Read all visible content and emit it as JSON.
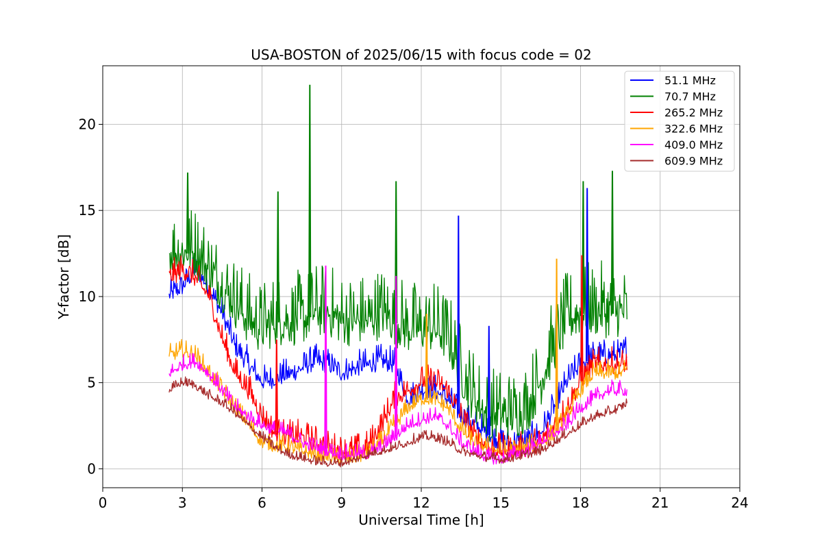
{
  "chart_data": {
    "type": "line",
    "title": "USA-BOSTON of 2025/06/15 with focus code = 02",
    "xlabel": "Universal Time [h]",
    "ylabel": "Y-factor [dB]",
    "xlim": [
      0,
      24
    ],
    "ylim": [
      -1.1,
      23.4
    ],
    "xticks": [
      0,
      3,
      6,
      9,
      12,
      15,
      18,
      21,
      24
    ],
    "yticks": [
      0,
      5,
      10,
      15,
      20
    ],
    "grid": true,
    "legend_position": "top-right",
    "x": [
      2.5,
      3.0,
      3.5,
      4.0,
      4.5,
      5.0,
      5.5,
      6.0,
      6.5,
      7.0,
      7.5,
      8.0,
      8.5,
      9.0,
      9.5,
      10.0,
      10.5,
      11.0,
      11.5,
      12.0,
      12.5,
      13.0,
      13.5,
      14.0,
      14.5,
      15.0,
      15.5,
      16.0,
      16.5,
      17.0,
      17.5,
      18.0,
      18.5,
      19.0,
      19.5,
      19.75
    ],
    "series": [
      {
        "name": " 51.1 MHz",
        "color": "#0000ff",
        "noise": 0.5,
        "values": [
          10.0,
          10.5,
          11.5,
          10.5,
          9.0,
          7.0,
          6.0,
          5.0,
          5.2,
          5.4,
          5.8,
          6.2,
          6.0,
          5.5,
          5.8,
          6.0,
          6.2,
          6.0,
          4.0,
          4.5,
          4.5,
          4.0,
          3.0,
          2.5,
          2.0,
          1.5,
          1.5,
          1.5,
          2.0,
          3.5,
          5.0,
          6.0,
          6.5,
          6.5,
          6.5,
          7.0
        ]
      },
      {
        "name": " 70.7 MHz",
        "color": "#008000",
        "noise": 1.4,
        "values": [
          12.5,
          12.5,
          12.5,
          11.5,
          10.5,
          9.5,
          8.5,
          8.0,
          8.5,
          8.5,
          8.5,
          9.0,
          9.0,
          8.5,
          8.5,
          8.5,
          9.0,
          8.5,
          8.0,
          8.0,
          8.0,
          7.5,
          5.5,
          4.0,
          3.0,
          3.0,
          3.0,
          3.5,
          5.0,
          7.0,
          8.5,
          9.0,
          9.0,
          9.0,
          9.0,
          9.0
        ]
      },
      {
        "name": "265.2 MHz",
        "color": "#ff0000",
        "noise": 0.5,
        "values": [
          11.0,
          11.5,
          11.0,
          10.0,
          7.5,
          5.5,
          4.5,
          3.0,
          2.0,
          1.8,
          1.8,
          1.5,
          1.2,
          1.0,
          1.0,
          1.2,
          2.5,
          4.0,
          4.5,
          5.0,
          5.0,
          4.5,
          3.0,
          1.8,
          1.2,
          1.0,
          1.0,
          1.2,
          1.5,
          2.5,
          3.5,
          5.0,
          6.0,
          6.0,
          6.0,
          6.0
        ]
      },
      {
        "name": "322.6 MHz",
        "color": "#ffa500",
        "noise": 0.35,
        "values": [
          6.5,
          6.8,
          6.5,
          5.5,
          4.5,
          3.5,
          2.5,
          1.5,
          1.3,
          1.2,
          1.0,
          0.8,
          0.6,
          0.5,
          0.6,
          0.8,
          1.5,
          2.5,
          3.5,
          4.0,
          4.0,
          3.5,
          2.2,
          1.5,
          1.2,
          1.0,
          1.0,
          1.2,
          1.5,
          2.0,
          3.0,
          4.5,
          5.5,
          5.5,
          5.5,
          5.8
        ]
      },
      {
        "name": "409.0 MHz",
        "color": "#ff00ff",
        "noise": 0.3,
        "values": [
          5.5,
          6.0,
          6.2,
          5.5,
          4.5,
          3.5,
          3.0,
          2.5,
          2.2,
          2.0,
          1.5,
          1.2,
          1.0,
          0.8,
          0.8,
          0.8,
          1.2,
          1.8,
          2.5,
          2.8,
          3.0,
          2.5,
          1.5,
          1.0,
          0.6,
          0.5,
          0.8,
          1.0,
          1.5,
          2.0,
          2.5,
          3.5,
          4.0,
          4.5,
          4.5,
          4.5
        ]
      },
      {
        "name": "609.9 MHz",
        "color": "#a52a2a",
        "noise": 0.2,
        "values": [
          4.5,
          5.0,
          4.8,
          4.2,
          3.8,
          3.2,
          2.5,
          1.8,
          1.2,
          0.8,
          0.6,
          0.4,
          0.3,
          0.3,
          0.5,
          0.8,
          1.0,
          1.2,
          1.5,
          1.8,
          1.8,
          1.5,
          1.0,
          0.8,
          0.6,
          0.5,
          0.6,
          0.8,
          1.0,
          1.5,
          2.0,
          2.5,
          3.0,
          3.2,
          3.5,
          3.8
        ]
      }
    ],
    "spikes": [
      {
        "series": 1,
        "x": 7.8,
        "y": 22.3
      },
      {
        "series": 1,
        "x": 3.2,
        "y": 17.2
      },
      {
        "series": 1,
        "x": 19.2,
        "y": 17.3
      },
      {
        "series": 1,
        "x": 11.05,
        "y": 16.7
      },
      {
        "series": 1,
        "x": 18.1,
        "y": 16.7
      },
      {
        "series": 1,
        "x": 6.6,
        "y": 16.1
      },
      {
        "series": 0,
        "x": 13.4,
        "y": 14.7
      },
      {
        "series": 0,
        "x": 18.25,
        "y": 16.3
      },
      {
        "series": 0,
        "x": 14.55,
        "y": 8.3
      },
      {
        "series": 4,
        "x": 8.4,
        "y": 11.8
      },
      {
        "series": 4,
        "x": 11.05,
        "y": 11.2
      },
      {
        "series": 3,
        "x": 17.1,
        "y": 12.2
      },
      {
        "series": 3,
        "x": 12.2,
        "y": 9.0
      },
      {
        "series": 2,
        "x": 18.05,
        "y": 12.4
      },
      {
        "series": 2,
        "x": 6.55,
        "y": 7.5
      }
    ]
  }
}
